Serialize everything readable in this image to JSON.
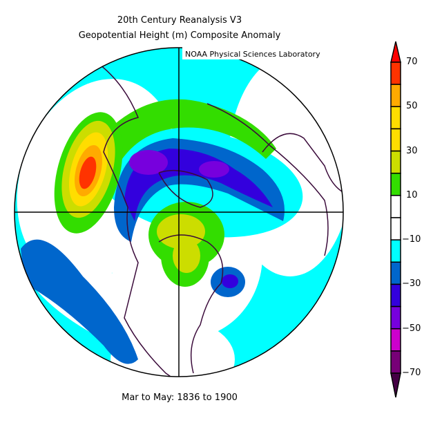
{
  "title_line1": "20th Century Reanalysis V3",
  "title_line2": "Geopotential Height (m) Composite Anomaly",
  "credit": "NOAA Physical Sciences Laboratory",
  "footer": "Mar to May: 1836 to 1900",
  "colorbar": {
    "labels": [
      "70",
      "50",
      "30",
      "10",
      "−10",
      "−30",
      "−50",
      "−70"
    ],
    "over_color": "#ff0000",
    "under_color": "#440044",
    "colors": [
      "#ff3300",
      "#ffaa00",
      "#ffdd00",
      "#ffdd00",
      "#ccdd00",
      "#33dd00",
      "#ffffff",
      "#ffffff",
      "#00ffff",
      "#0066cc",
      "#3300dd",
      "#7700dd",
      "#cc00cc",
      "#770077"
    ]
  }
}
